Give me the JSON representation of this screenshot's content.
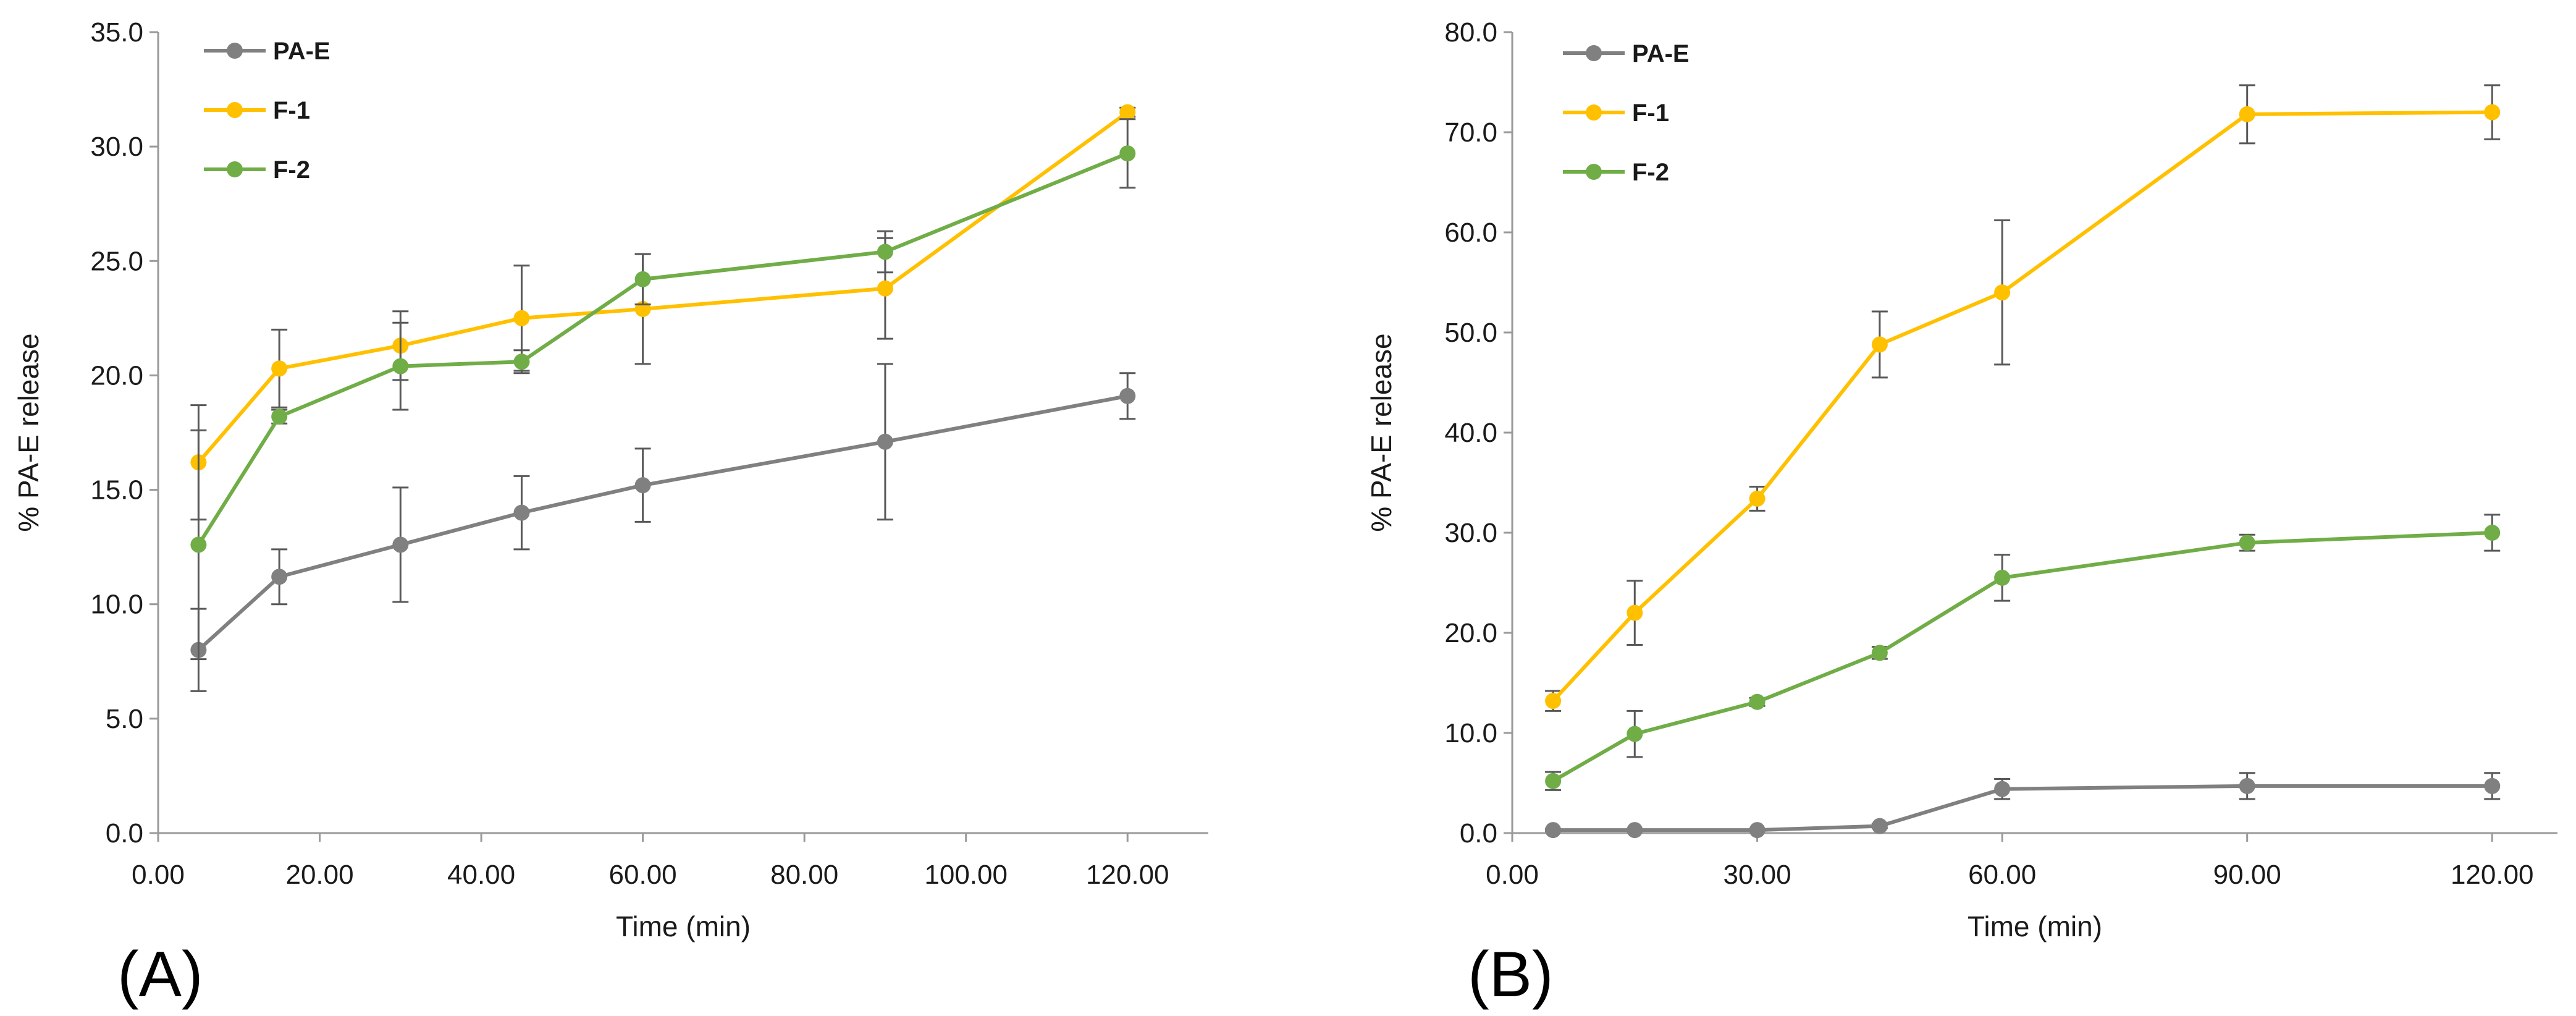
{
  "chart_data": [
    {
      "type": "line",
      "panel_label": "(A)",
      "xlabel": "Time (min)",
      "ylabel": "% PA-E release",
      "xlim": [
        0,
        130
      ],
      "ylim": [
        0,
        35
      ],
      "xticks": [
        0,
        20,
        40,
        60,
        80,
        100,
        120
      ],
      "xtick_labels": [
        "0.00",
        "20.00",
        "40.00",
        "60.00",
        "80.00",
        "100.00",
        "120.00"
      ],
      "yticks": [
        0,
        5,
        10,
        15,
        20,
        25,
        30,
        35
      ],
      "ytick_labels": [
        "0.0",
        "5.0",
        "10.0",
        "15.0",
        "20.0",
        "25.0",
        "30.0",
        "35.0"
      ],
      "grid": false,
      "legend_position": "top-left",
      "series": [
        {
          "name": "PA-E",
          "color": "#808080",
          "x": [
            5,
            15,
            30,
            45,
            60,
            90,
            120
          ],
          "y": [
            8.0,
            11.2,
            12.6,
            14.0,
            15.2,
            17.1,
            19.1
          ],
          "err": [
            1.8,
            1.2,
            2.5,
            1.6,
            1.6,
            3.4,
            1.0
          ]
        },
        {
          "name": "F-1",
          "color": "#FFC000",
          "x": [
            5,
            15,
            30,
            45,
            60,
            90,
            120
          ],
          "y": [
            16.2,
            20.3,
            21.3,
            22.5,
            22.9,
            23.8,
            31.5
          ],
          "err": [
            2.5,
            1.7,
            1.5,
            2.3,
            2.4,
            2.2,
            0.2
          ]
        },
        {
          "name": "F-2",
          "color": "#70AD47",
          "x": [
            5,
            15,
            30,
            45,
            60,
            90,
            120
          ],
          "y": [
            12.6,
            18.2,
            20.4,
            20.6,
            24.2,
            25.4,
            29.7
          ],
          "err": [
            5.0,
            0.3,
            1.9,
            0.5,
            1.1,
            0.9,
            1.5
          ]
        }
      ]
    },
    {
      "type": "line",
      "panel_label": "(B)",
      "xlabel": "Time (min)",
      "ylabel": "% PA-E release",
      "xlim": [
        0,
        128
      ],
      "ylim": [
        0,
        80
      ],
      "xticks": [
        0,
        30,
        60,
        90,
        120
      ],
      "xtick_labels": [
        "0.00",
        "30.00",
        "60.00",
        "90.00",
        "120.00"
      ],
      "yticks": [
        0,
        10,
        20,
        30,
        40,
        50,
        60,
        70,
        80
      ],
      "ytick_labels": [
        "0.0",
        "10.0",
        "20.0",
        "30.0",
        "40.0",
        "50.0",
        "60.0",
        "70.0",
        "80.0"
      ],
      "grid": false,
      "legend_position": "top-left",
      "series": [
        {
          "name": "PA-E",
          "color": "#808080",
          "x": [
            5,
            15,
            30,
            45,
            60,
            90,
            120
          ],
          "y": [
            0.3,
            0.3,
            0.3,
            0.7,
            4.4,
            4.7,
            4.7
          ],
          "err": [
            0.1,
            0.1,
            0.1,
            0.2,
            1.0,
            1.3,
            1.3
          ]
        },
        {
          "name": "F-1",
          "color": "#FFC000",
          "x": [
            5,
            15,
            30,
            45,
            60,
            90,
            120
          ],
          "y": [
            13.2,
            22.0,
            33.4,
            48.8,
            54.0,
            71.8,
            72.0
          ],
          "err": [
            1.0,
            3.2,
            1.2,
            3.3,
            7.2,
            2.9,
            2.7
          ]
        },
        {
          "name": "F-2",
          "color": "#70AD47",
          "x": [
            5,
            15,
            30,
            45,
            60,
            90,
            120
          ],
          "y": [
            5.2,
            9.9,
            13.1,
            18.0,
            25.5,
            29.0,
            30.0
          ],
          "err": [
            0.9,
            2.3,
            0.4,
            0.6,
            2.3,
            0.8,
            1.8
          ]
        }
      ]
    }
  ]
}
